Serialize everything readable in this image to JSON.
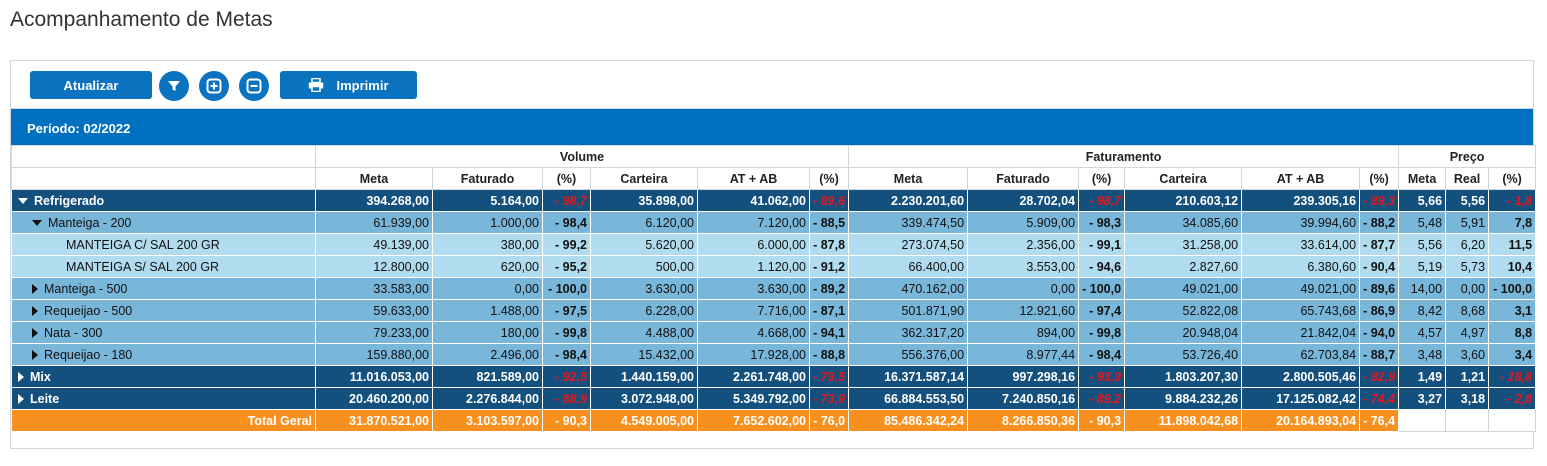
{
  "page": {
    "title": "Acompanhamento de Metas"
  },
  "toolbar": {
    "atualizar_label": "Atualizar",
    "imprimir_label": "Imprimir",
    "icons": [
      "filter-icon",
      "expand-all-icon",
      "collapse-all-icon",
      "printer-icon"
    ]
  },
  "period": {
    "label": "Período: 02/2022"
  },
  "colors": {
    "header_blue": "#0070c0",
    "level1": "#13507e",
    "level2": "#78b6da",
    "level3": "#b1dcf0",
    "total": "#f7901e",
    "negative": "#e8141c",
    "positive": "#1e8a1e"
  },
  "groups": {
    "volume": "Volume",
    "faturamento": "Faturamento",
    "preco": "Preço"
  },
  "columns": {
    "meta": "Meta",
    "faturado": "Faturado",
    "pct": "(%)",
    "carteira": "Carteira",
    "atab": "AT + AB",
    "real": "Real"
  },
  "rows": [
    {
      "level": 1,
      "expanded": true,
      "label": "Refrigerado",
      "v": [
        "394.268,00",
        "5.164,00",
        "- 98,7",
        "35.898,00",
        "41.062,00",
        "- 89,6"
      ],
      "f": [
        "2.230.201,60",
        "28.702,04",
        "- 98,7",
        "210.603,12",
        "239.305,16",
        "- 89,3"
      ],
      "p": [
        "5,66",
        "5,56",
        "- 1,8"
      ]
    },
    {
      "level": 2,
      "expanded": true,
      "label": "Manteiga - 200",
      "v": [
        "61.939,00",
        "1.000,00",
        "- 98,4",
        "6.120,00",
        "7.120,00",
        "- 88,5"
      ],
      "f": [
        "339.474,50",
        "5.909,00",
        "- 98,3",
        "34.085,60",
        "39.994,60",
        "- 88,2"
      ],
      "p": [
        "5,48",
        "5,91",
        "7,8"
      ]
    },
    {
      "level": 3,
      "label": "MANTEIGA C/ SAL 200 GR",
      "v": [
        "49.139,00",
        "380,00",
        "- 99,2",
        "5.620,00",
        "6.000,00",
        "- 87,8"
      ],
      "f": [
        "273.074,50",
        "2.356,00",
        "- 99,1",
        "31.258,00",
        "33.614,00",
        "- 87,7"
      ],
      "p": [
        "5,56",
        "6,20",
        "11,5"
      ]
    },
    {
      "level": 3,
      "label": "MANTEIGA S/ SAL 200 GR",
      "v": [
        "12.800,00",
        "620,00",
        "- 95,2",
        "500,00",
        "1.120,00",
        "- 91,2"
      ],
      "f": [
        "66.400,00",
        "3.553,00",
        "- 94,6",
        "2.827,60",
        "6.380,60",
        "- 90,4"
      ],
      "p": [
        "5,19",
        "5,73",
        "10,4"
      ]
    },
    {
      "level": 2,
      "expanded": false,
      "label": "Manteiga - 500",
      "v": [
        "33.583,00",
        "0,00",
        "- 100,0",
        "3.630,00",
        "3.630,00",
        "- 89,2"
      ],
      "f": [
        "470.162,00",
        "0,00",
        "- 100,0",
        "49.021,00",
        "49.021,00",
        "- 89,6"
      ],
      "p": [
        "14,00",
        "0,00",
        "- 100,0"
      ]
    },
    {
      "level": 2,
      "expanded": false,
      "label": "Requeijao - 500",
      "v": [
        "59.633,00",
        "1.488,00",
        "- 97,5",
        "6.228,00",
        "7.716,00",
        "- 87,1"
      ],
      "f": [
        "501.871,90",
        "12.921,60",
        "- 97,4",
        "52.822,08",
        "65.743,68",
        "- 86,9"
      ],
      "p": [
        "8,42",
        "8,68",
        "3,1"
      ]
    },
    {
      "level": 2,
      "expanded": false,
      "label": "Nata - 300",
      "v": [
        "79.233,00",
        "180,00",
        "- 99,8",
        "4.488,00",
        "4.668,00",
        "- 94,1"
      ],
      "f": [
        "362.317,20",
        "894,00",
        "- 99,8",
        "20.948,04",
        "21.842,04",
        "- 94,0"
      ],
      "p": [
        "4,57",
        "4,97",
        "8,8"
      ]
    },
    {
      "level": 2,
      "expanded": false,
      "label": "Requeijao - 180",
      "v": [
        "159.880,00",
        "2.496,00",
        "- 98,4",
        "15.432,00",
        "17.928,00",
        "- 88,8"
      ],
      "f": [
        "556.376,00",
        "8.977,44",
        "- 98,4",
        "53.726,40",
        "62.703,84",
        "- 88,7"
      ],
      "p": [
        "3,48",
        "3,60",
        "3,4"
      ]
    },
    {
      "level": 1,
      "expanded": false,
      "label": "Mix",
      "v": [
        "11.016.053,00",
        "821.589,00",
        "- 92,5",
        "1.440.159,00",
        "2.261.748,00",
        "- 79,5"
      ],
      "f": [
        "16.371.587,14",
        "997.298,16",
        "- 93,9",
        "1.803.207,30",
        "2.800.505,46",
        "- 82,9"
      ],
      "p": [
        "1,49",
        "1,21",
        "- 18,8"
      ]
    },
    {
      "level": 1,
      "expanded": false,
      "label": "Leite",
      "v": [
        "20.460.200,00",
        "2.276.844,00",
        "- 88,9",
        "3.072.948,00",
        "5.349.792,00",
        "- 73,9"
      ],
      "f": [
        "66.884.553,50",
        "7.240.850,16",
        "- 89,2",
        "9.884.232,26",
        "17.125.082,42",
        "- 74,4"
      ],
      "p": [
        "3,27",
        "3,18",
        "- 2,8"
      ]
    }
  ],
  "total": {
    "label": "Total Geral",
    "v": [
      "31.870.521,00",
      "3.103.597,00",
      "- 90,3",
      "4.549.005,00",
      "7.652.602,00",
      "- 76,0"
    ],
    "f": [
      "85.486.342,24",
      "8.266.850,36",
      "- 90,3",
      "11.898.042,68",
      "20.164.893,04",
      "- 76,4"
    ]
  }
}
